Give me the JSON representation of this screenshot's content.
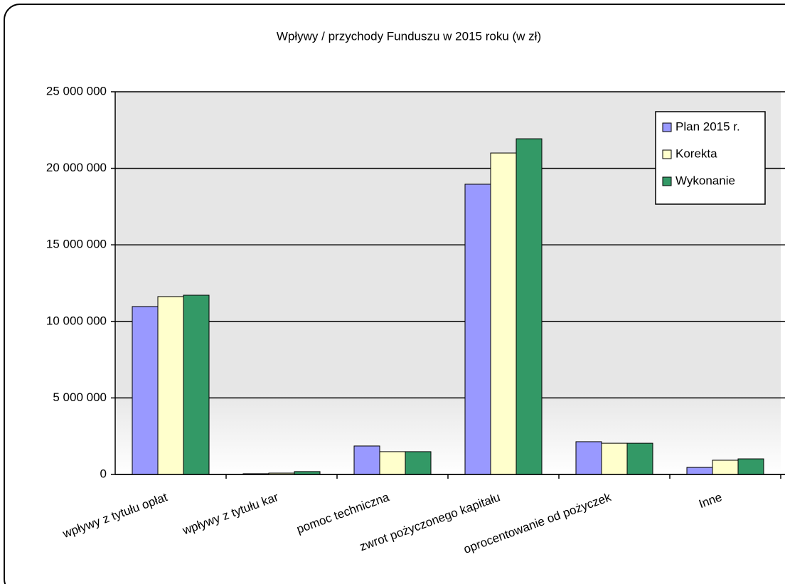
{
  "chart_data": {
    "type": "bar",
    "title": "Wpływy / przychody Funduszu w 2015 roku  (w zł)",
    "categories": [
      "wpływy z tytułu opłat",
      "wpływy z tytułu kar",
      "pomoc techniczna",
      "zwrot pożyczonego kapitału",
      "oprocentowanie od pożyczek",
      "Inne"
    ],
    "series": [
      {
        "name": "Plan 2015 r.",
        "color": "#9999ff",
        "values": [
          10970000,
          50000,
          1860000,
          18960000,
          2140000,
          460000
        ]
      },
      {
        "name": "Korekta",
        "color": "#ffffcc",
        "values": [
          11620000,
          90000,
          1490000,
          21000000,
          2040000,
          930000
        ]
      },
      {
        "name": "Wykonanie",
        "color": "#339966",
        "values": [
          11710000,
          190000,
          1490000,
          21930000,
          2040000,
          1020000
        ]
      }
    ],
    "ylim": [
      0,
      25000000
    ],
    "yticks": [
      {
        "value": 0,
        "label": "0"
      },
      {
        "value": 5000000,
        "label": "5 000 000"
      },
      {
        "value": 10000000,
        "label": "10 000 000"
      },
      {
        "value": 15000000,
        "label": "15 000 000"
      },
      {
        "value": 20000000,
        "label": "20 000 000"
      },
      {
        "value": 25000000,
        "label": "25 000 000"
      }
    ],
    "grid": true,
    "legend": "upper right"
  }
}
